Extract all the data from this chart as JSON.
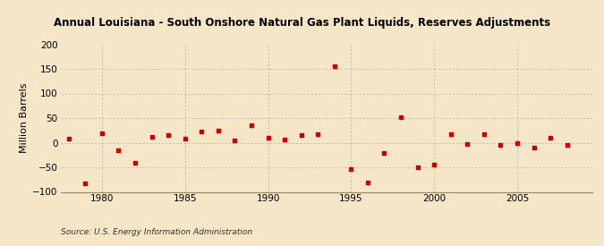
{
  "title": "Annual Louisiana - South Onshore Natural Gas Plant Liquids, Reserves Adjustments",
  "ylabel": "Million Barrels",
  "source": "Source: U.S. Energy Information Administration",
  "background_color": "#f5e6c8",
  "marker_color": "#cc0000",
  "xlim": [
    1977.5,
    2009.5
  ],
  "ylim": [
    -100,
    200
  ],
  "yticks": [
    -100,
    -50,
    0,
    50,
    100,
    150,
    200
  ],
  "xticks": [
    1980,
    1985,
    1990,
    1995,
    2000,
    2005
  ],
  "years": [
    1978,
    1979,
    1980,
    1981,
    1982,
    1983,
    1984,
    1985,
    1986,
    1987,
    1988,
    1989,
    1990,
    1991,
    1992,
    1993,
    1994,
    1995,
    1996,
    1997,
    1998,
    1999,
    2000,
    2001,
    2002,
    2003,
    2004,
    2005,
    2006,
    2007,
    2008
  ],
  "values": [
    8,
    -83,
    20,
    -15,
    -40,
    12,
    15,
    8,
    22,
    25,
    5,
    35,
    10,
    7,
    15,
    17,
    155,
    -53,
    -80,
    -20,
    52,
    -50,
    -45,
    17,
    -2,
    17,
    -5,
    0,
    -10,
    10,
    -5
  ]
}
